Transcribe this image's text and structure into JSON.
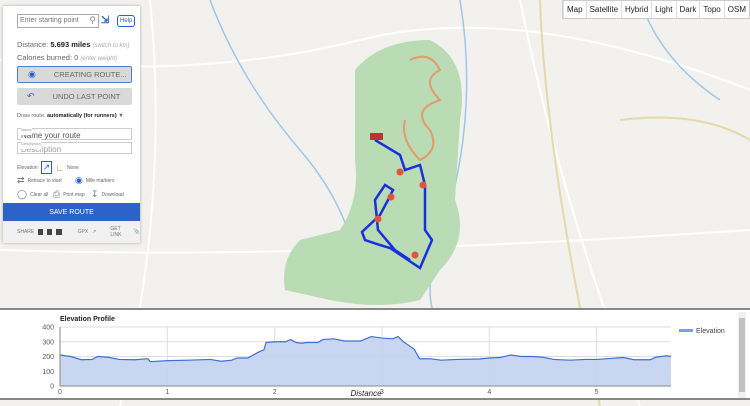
{
  "map_types": [
    "Map",
    "Satellite",
    "Hybrid",
    "Light",
    "Dark",
    "Topo",
    "OSM"
  ],
  "panel": {
    "search_placeholder": "Enter starting point",
    "help": "Help",
    "distance_label": "Distance:",
    "distance_value": "5.693 miles",
    "switch_units": "(switch to km)",
    "calories_label": "Calories burned: 0",
    "enter_weight": "(enter weight)",
    "creating_route": "CREATING ROUTE...",
    "undo": "UNDO LAST POINT",
    "draw_route_label": "Draw route:",
    "draw_route_value": "automatically (for runners)",
    "name_label": "Name",
    "name_placeholder": "Name your route",
    "description_label": "Description",
    "description_placeholder": "Description",
    "elevation_label": "Elevation",
    "none_label": "None",
    "retrace": "Retrace to start",
    "mile_markers": "Mile markers",
    "clear_all": "Clear all",
    "print_map": "Print map",
    "download": "Download",
    "save_route": "SAVE ROUTE",
    "share": "SHARE",
    "gpx": "GPX",
    "get_link": "GET LINK"
  },
  "chart_data": {
    "type": "area",
    "title": "Elevation Profile",
    "xlabel": "Distance",
    "xlim": [
      0,
      5.693
    ],
    "ylim": [
      0,
      400
    ],
    "xticks": [
      0,
      1,
      2,
      3,
      4,
      5
    ],
    "yticks": [
      0,
      100,
      200,
      300,
      400
    ],
    "grid": true,
    "legend": "right",
    "series": [
      {
        "name": "Elevation",
        "color": "#3d6fd8",
        "fill": "#c2d1ef",
        "x": [
          0,
          0.05,
          0.1,
          0.2,
          0.3,
          0.35,
          0.45,
          0.55,
          0.7,
          0.82,
          0.84,
          1.0,
          1.2,
          1.4,
          1.5,
          1.6,
          1.65,
          1.75,
          1.8,
          1.85,
          1.9,
          1.92,
          2.0,
          2.1,
          2.15,
          2.2,
          2.25,
          2.3,
          2.4,
          2.45,
          2.55,
          2.65,
          2.8,
          2.9,
          3.0,
          3.1,
          3.15,
          3.2,
          3.25,
          3.3,
          3.35,
          3.45,
          3.55,
          3.7,
          3.9,
          4.0,
          4.1,
          4.2,
          4.3,
          4.4,
          4.5,
          4.6,
          4.75,
          4.9,
          5.0,
          5.1,
          5.25,
          5.35,
          5.5,
          5.55,
          5.65,
          5.693
        ],
        "y": [
          210,
          205,
          200,
          178,
          180,
          200,
          195,
          180,
          178,
          185,
          165,
          172,
          175,
          180,
          168,
          175,
          190,
          190,
          210,
          230,
          245,
          295,
          300,
          300,
          315,
          295,
          290,
          295,
          295,
          315,
          320,
          305,
          305,
          335,
          325,
          320,
          335,
          300,
          275,
          250,
          185,
          185,
          175,
          180,
          183,
          190,
          193,
          210,
          200,
          200,
          195,
          180,
          175,
          180,
          180,
          185,
          193,
          178,
          178,
          195,
          205,
          200
        ]
      }
    ]
  }
}
